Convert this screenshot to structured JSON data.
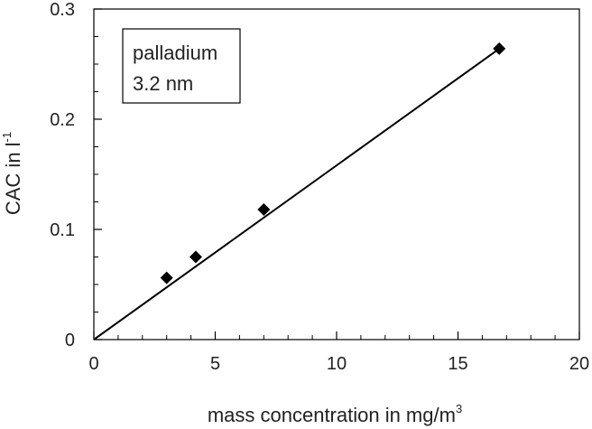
{
  "chart_data": {
    "type": "scatter",
    "xlabel": "mass concentration in mg/m",
    "xlabel_sup": "3",
    "ylabel": "CAC in l",
    "ylabel_sup": "-1",
    "xlim": [
      0,
      20
    ],
    "ylim": [
      0,
      0.3
    ],
    "x_ticks": [
      0,
      5,
      10,
      15,
      20
    ],
    "y_ticks": [
      0,
      0.1,
      0.2,
      0.3
    ],
    "x_tick_labels": [
      "0",
      "5",
      "10",
      "15",
      "20"
    ],
    "y_tick_labels": [
      "0",
      "0.1",
      "0.2",
      "0.3"
    ],
    "x_minor_step": 1,
    "y_minor_step": 0.025,
    "grid": false,
    "legend": {
      "placement": "top-left",
      "lines": [
        "palladium",
        "3.2 nm"
      ]
    },
    "series": [
      {
        "marker": "diamond",
        "color": "#000000",
        "x": [
          3.0,
          4.2,
          7.0,
          16.7
        ],
        "y": [
          0.056,
          0.075,
          0.118,
          0.264
        ]
      }
    ],
    "fit_line": {
      "x": [
        0,
        16.7
      ],
      "y": [
        0,
        0.264
      ],
      "color": "#000000"
    }
  }
}
